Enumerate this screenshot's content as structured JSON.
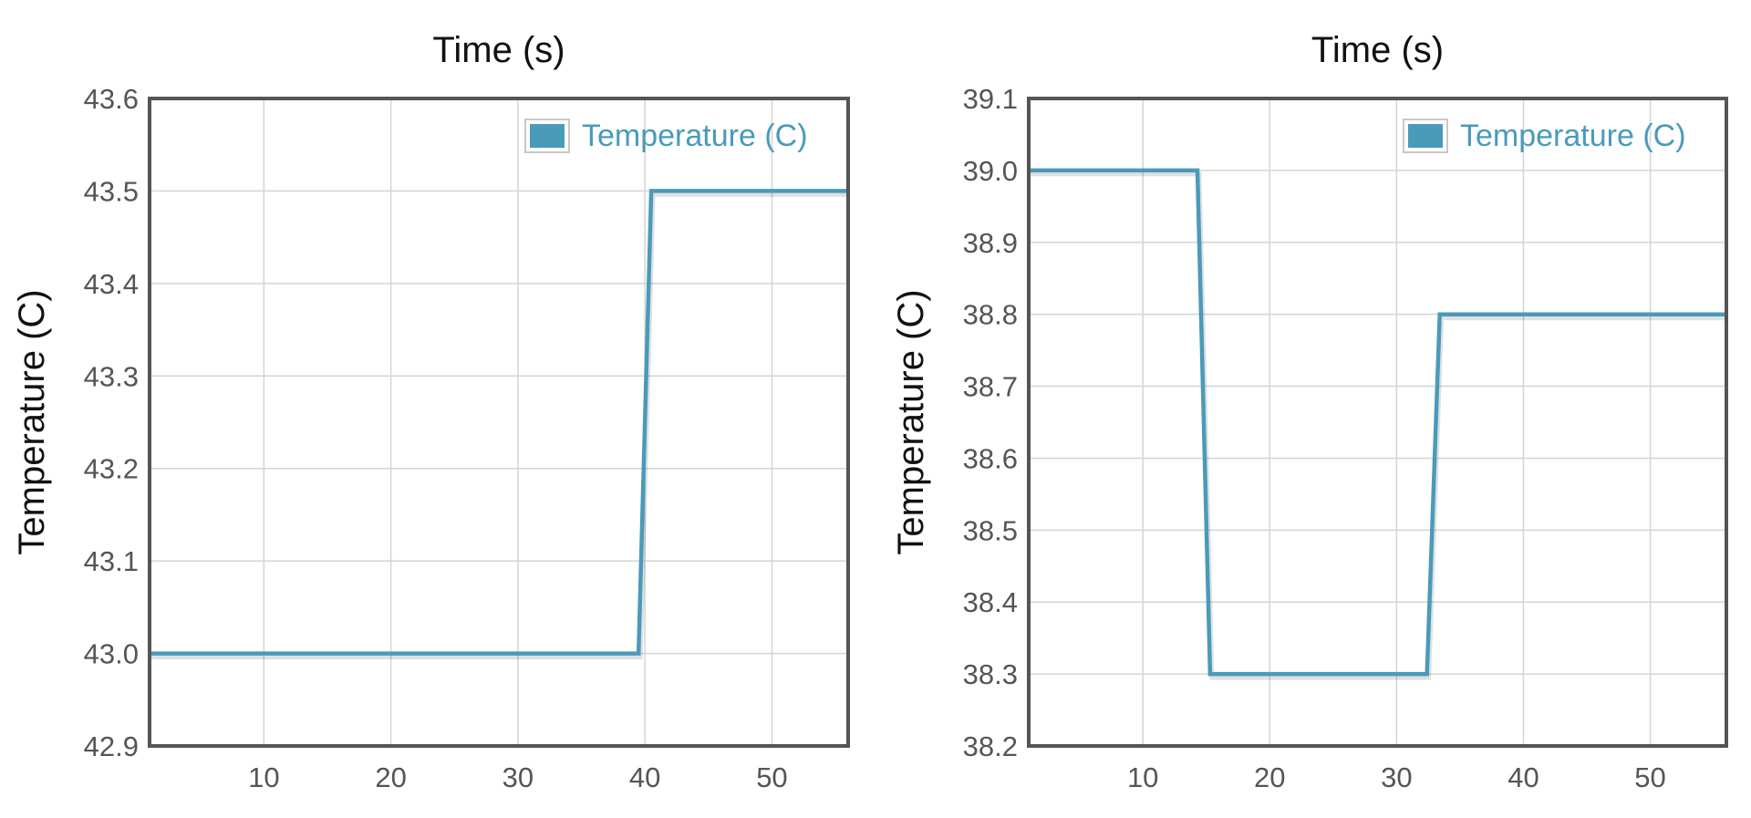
{
  "chart_data": [
    {
      "type": "line",
      "title": "Time (s)",
      "xlabel": "",
      "ylabel": "Temperature (C)",
      "xlim": [
        1,
        56
      ],
      "ylim": [
        42.9,
        43.6
      ],
      "xticks": [
        10,
        20,
        30,
        40,
        50
      ],
      "yticks": [
        42.9,
        43.0,
        43.1,
        43.2,
        43.3,
        43.4,
        43.5,
        43.6
      ],
      "grid": true,
      "legend_position": "top-right",
      "series": [
        {
          "name": "Temperature (C)",
          "color": "#4a9aba",
          "x": [
            1,
            39.5,
            40.5,
            56
          ],
          "y": [
            43.0,
            43.0,
            43.5,
            43.5
          ]
        }
      ]
    },
    {
      "type": "line",
      "title": "Time (s)",
      "xlabel": "",
      "ylabel": "Temperature (C)",
      "xlim": [
        1,
        56
      ],
      "ylim": [
        38.2,
        39.1
      ],
      "xticks": [
        10,
        20,
        30,
        40,
        50
      ],
      "yticks": [
        38.2,
        38.3,
        38.4,
        38.5,
        38.6,
        38.7,
        38.8,
        38.9,
        39.0,
        39.1
      ],
      "grid": true,
      "legend_position": "top-right",
      "series": [
        {
          "name": "Temperature (C)",
          "color": "#4a9aba",
          "x": [
            1,
            14.3,
            15.3,
            32.4,
            33.4,
            56
          ],
          "y": [
            39.0,
            39.0,
            38.3,
            38.3,
            38.8,
            38.8
          ]
        }
      ]
    }
  ]
}
